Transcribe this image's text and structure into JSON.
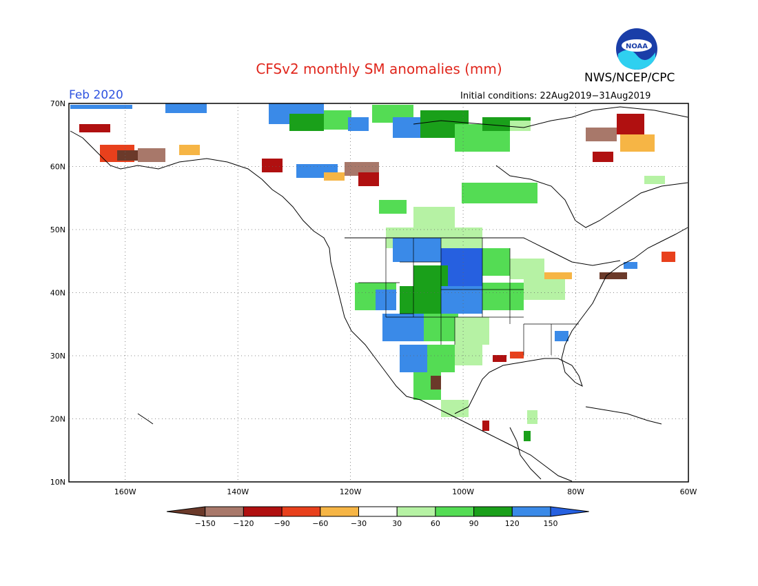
{
  "header": {
    "title": "CFSv2 monthly SM anomalies (mm)",
    "agency": "NWS/NCEP/CPC",
    "valid_period": "Feb 2020",
    "initial_conditions": "Initial conditions: 22Aug2019−31Aug2019",
    "logo_text": "NOAA",
    "logo_icon": "noaa-logo-icon"
  },
  "map": {
    "projection": "cylindrical",
    "lon_range": [
      -170,
      -60
    ],
    "lat_range": [
      10,
      70
    ],
    "lon_ticks": [
      "160W",
      "140W",
      "120W",
      "100W",
      "80W",
      "60W"
    ],
    "lat_ticks": [
      "10N",
      "20N",
      "30N",
      "40N",
      "50N",
      "60N",
      "70N"
    ],
    "grid": "dotted"
  },
  "colorbar": {
    "labels": [
      "−150",
      "−120",
      "−90",
      "−60",
      "−30",
      "30",
      "60",
      "90",
      "120",
      "150"
    ],
    "colors": [
      "#6b3a2a",
      "#a8786a",
      "#b01010",
      "#e8401c",
      "#f6b545",
      "#ffffff",
      "#b6f2a4",
      "#54dc54",
      "#1aa01a",
      "#3a8ae8",
      "#2660e0"
    ]
  }
}
